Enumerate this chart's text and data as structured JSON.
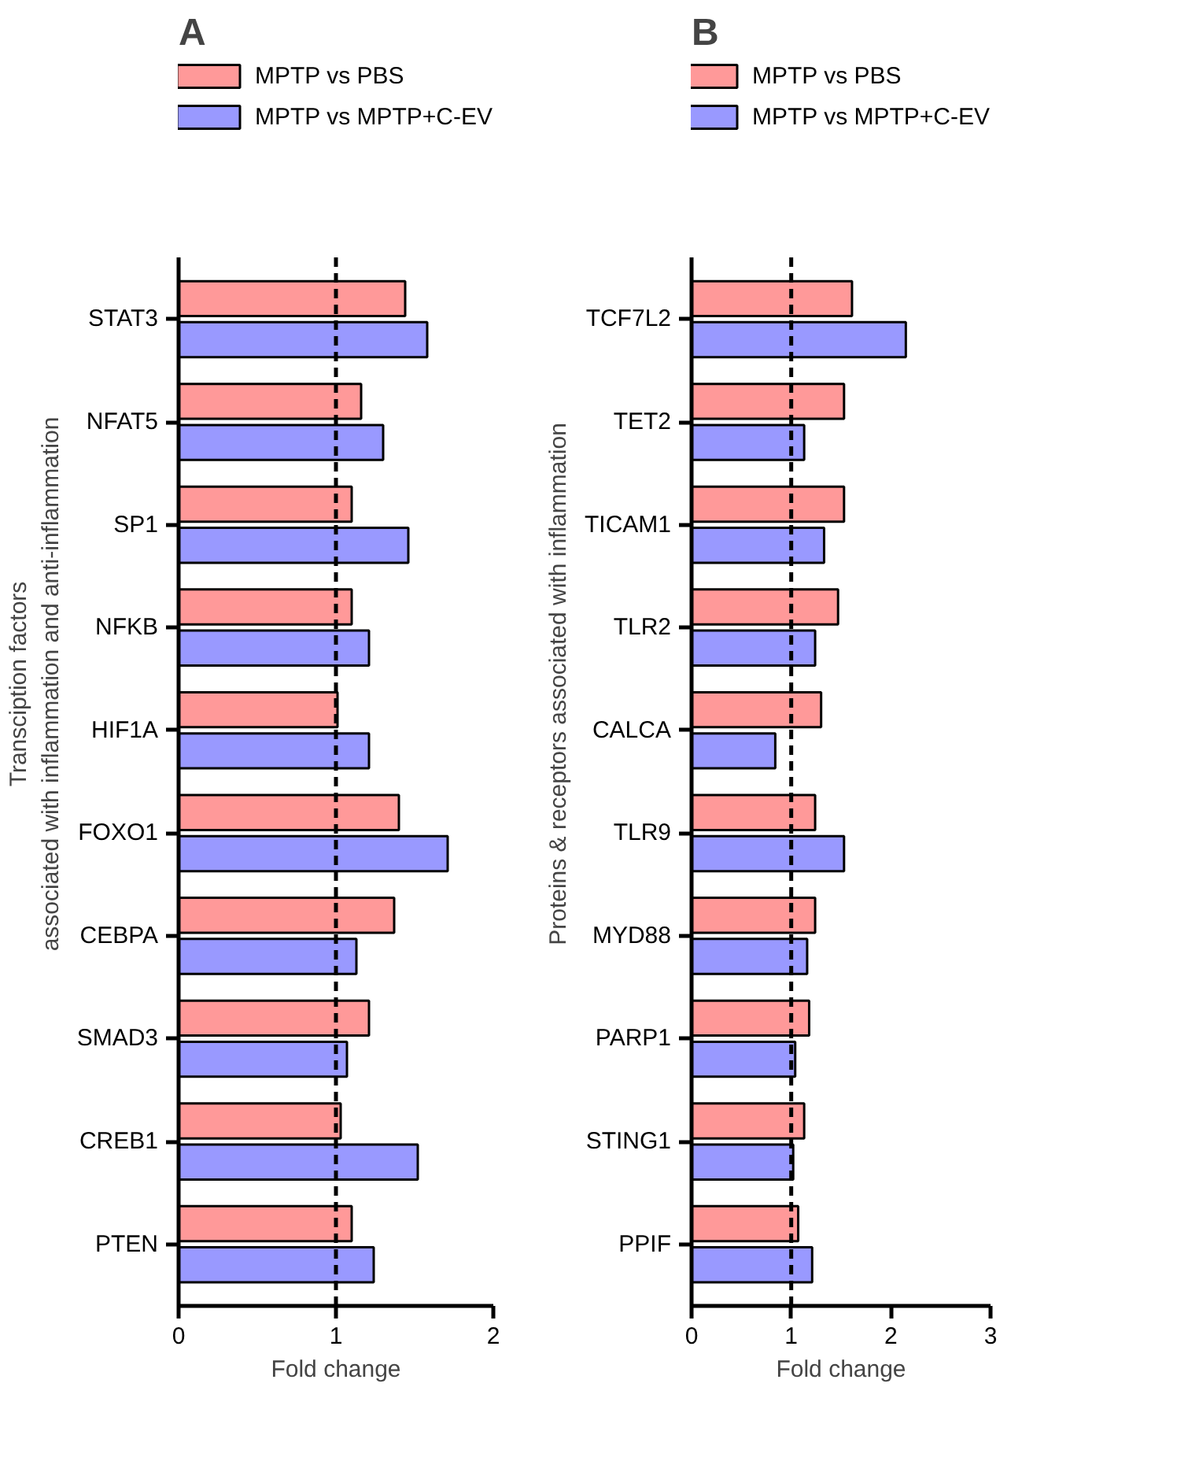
{
  "chart_data": [
    {
      "type": "bar",
      "orientation": "horizontal",
      "title": "A",
      "xlabel": "Fold change",
      "ylabel": "Transciption factors\nassociated with inflammation and anti-inflammation",
      "categories": [
        "STAT3",
        "NFAT5",
        "SP1",
        "NFKB",
        "HIF1A",
        "FOXO1",
        "CEBPA",
        "SMAD3",
        "CREB1",
        "PTEN"
      ],
      "series": [
        {
          "name": "MPTP vs PBS",
          "color": "#ff9999",
          "values": [
            1.44,
            1.16,
            1.1,
            1.1,
            1.01,
            1.4,
            1.37,
            1.21,
            1.03,
            1.1
          ]
        },
        {
          "name": "MPTP vs MPTP+C-EV",
          "color": "#9999ff",
          "values": [
            1.58,
            1.3,
            1.46,
            1.21,
            1.21,
            1.71,
            1.13,
            1.07,
            1.52,
            1.24
          ]
        }
      ],
      "xlim": [
        0,
        2
      ],
      "xticks": [
        0,
        1,
        2
      ],
      "grid": false,
      "legend": "top",
      "ref_lines": [
        {
          "axis": "x",
          "value": 1,
          "line_style": "dashed",
          "color": "#000000"
        }
      ]
    },
    {
      "type": "bar",
      "orientation": "horizontal",
      "title": "B",
      "xlabel": "Fold change",
      "ylabel": "Proteins & receptors associated with inflammation",
      "categories": [
        "TCF7L2",
        "TET2",
        "TICAM1",
        "TLR2",
        "CALCA",
        "TLR9",
        "MYD88",
        "PARP1",
        "STING1",
        "PPIF"
      ],
      "series": [
        {
          "name": "MPTP vs PBS",
          "color": "#ff9999",
          "values": [
            1.61,
            1.53,
            1.53,
            1.47,
            1.3,
            1.24,
            1.24,
            1.18,
            1.13,
            1.07
          ]
        },
        {
          "name": "MPTP vs MPTP+C-EV",
          "color": "#9999ff",
          "values": [
            2.15,
            1.13,
            1.33,
            1.24,
            0.84,
            1.53,
            1.16,
            1.04,
            1.02,
            1.21
          ]
        }
      ],
      "xlim": [
        0,
        3
      ],
      "xticks": [
        0,
        1,
        2,
        3
      ],
      "grid": false,
      "legend": "top",
      "ref_lines": [
        {
          "axis": "x",
          "value": 1,
          "line_style": "dashed",
          "color": "#000000"
        }
      ]
    }
  ]
}
